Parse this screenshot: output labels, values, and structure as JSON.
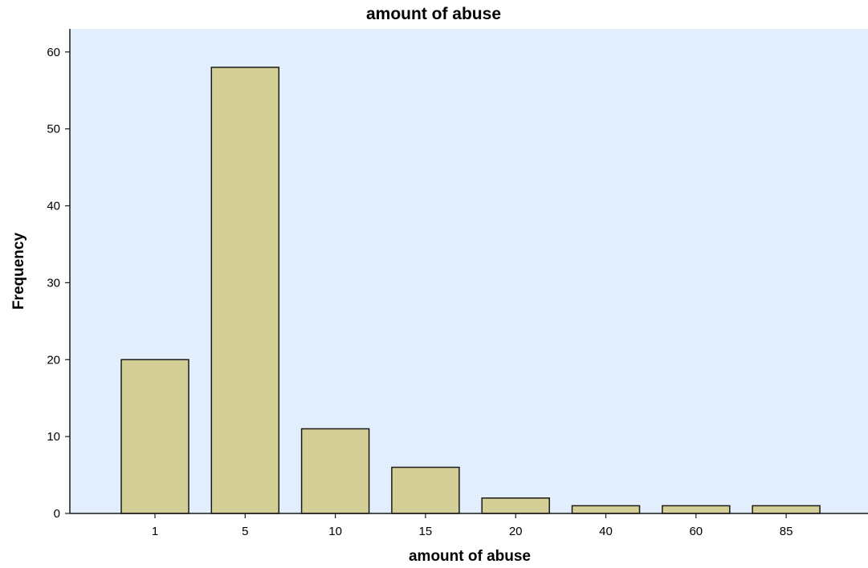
{
  "chart_data": {
    "type": "bar",
    "title": "amount of abuse",
    "xlabel": "amount of abuse",
    "ylabel": "Frequency",
    "categories": [
      "1",
      "5",
      "10",
      "15",
      "20",
      "40",
      "60",
      "85"
    ],
    "values": [
      20,
      58,
      11,
      6,
      2,
      1,
      1,
      1
    ],
    "ylim": [
      0,
      63
    ],
    "yticks": [
      0,
      10,
      20,
      30,
      40,
      50,
      60
    ],
    "grid": false,
    "legend": "none",
    "colors": {
      "plot_background": "#e2eefb",
      "bar_fill": "#d4cf97",
      "bar_stroke": "#1a1a1a",
      "axis": "#1a1a1a"
    }
  }
}
